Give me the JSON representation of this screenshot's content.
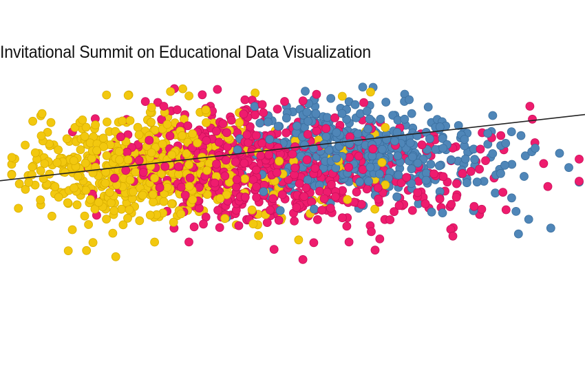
{
  "title": "Invitational Summit on Educational Data Visualization",
  "chart_data": {
    "type": "scatter",
    "title": "Invitational Summit on Educational Data Visualization",
    "xlabel": "",
    "ylabel": "",
    "xlim": [
      0,
      100
    ],
    "ylim": [
      0,
      100
    ],
    "grid": false,
    "legend": "none",
    "series": [
      {
        "color": "#F2C80F",
        "stroke": "#D9AE00",
        "clusters": [
          {
            "cx": 22,
            "cy": 60,
            "sx": 9,
            "sy": 11,
            "n": 420
          },
          {
            "cx": 32,
            "cy": 66,
            "sx": 6,
            "sy": 9,
            "n": 120
          },
          {
            "cx": 45,
            "cy": 60,
            "sx": 12,
            "sy": 12,
            "n": 90
          }
        ]
      },
      {
        "color": "#EE1C6E",
        "stroke": "#C9105A",
        "clusters": [
          {
            "cx": 40,
            "cy": 63,
            "sx": 10,
            "sy": 11,
            "n": 470
          },
          {
            "cx": 55,
            "cy": 58,
            "sx": 12,
            "sy": 12,
            "n": 200
          },
          {
            "cx": 72,
            "cy": 56,
            "sx": 14,
            "sy": 12,
            "n": 70
          }
        ]
      },
      {
        "color": "#4F86B8",
        "stroke": "#3A6E9E",
        "clusters": [
          {
            "cx": 57,
            "cy": 68,
            "sx": 7,
            "sy": 9,
            "n": 330
          },
          {
            "cx": 67,
            "cy": 66,
            "sx": 8,
            "sy": 9,
            "n": 150
          },
          {
            "cx": 82,
            "cy": 62,
            "sx": 10,
            "sy": 11,
            "n": 50
          }
        ]
      }
    ],
    "trend_line": {
      "x": [
        0,
        100
      ],
      "y": [
        56,
        82
      ],
      "color": "#222222"
    }
  }
}
